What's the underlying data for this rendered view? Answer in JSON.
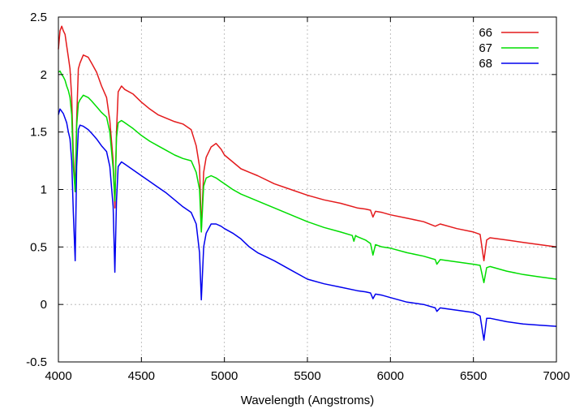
{
  "chart_data": {
    "type": "line",
    "title": "",
    "xlabel": "Wavelength (Angstroms)",
    "ylabel": "",
    "xlim": [
      4000,
      7000
    ],
    "ylim": [
      -0.5,
      2.5
    ],
    "grid": true,
    "legend_position": "top-right",
    "x_ticks": [
      4000,
      4500,
      5000,
      5500,
      6000,
      6500,
      7000
    ],
    "y_ticks": [
      -0.5,
      0,
      0.5,
      1,
      1.5,
      2,
      2.5
    ],
    "x_tick_labels": [
      "4000",
      "4500",
      "5000",
      "5500",
      "6000",
      "6500",
      "7000"
    ],
    "y_tick_labels": [
      "-0.5",
      "0",
      "0.5",
      "1",
      "1.5",
      "2",
      "2.5"
    ],
    "series": [
      {
        "name": "66",
        "color": "#e41a1c",
        "x": [
          4000,
          4010,
          4020,
          4030,
          4040,
          4050,
          4060,
          4070,
          4080,
          4090,
          4101,
          4110,
          4120,
          4130,
          4150,
          4180,
          4200,
          4230,
          4260,
          4290,
          4310,
          4330,
          4340,
          4350,
          4360,
          4380,
          4400,
          4450,
          4500,
          4550,
          4600,
          4650,
          4700,
          4750,
          4800,
          4830,
          4850,
          4861,
          4875,
          4890,
          4920,
          4950,
          4980,
          5000,
          5050,
          5100,
          5150,
          5200,
          5300,
          5400,
          5500,
          5600,
          5700,
          5800,
          5850,
          5880,
          5895,
          5910,
          5950,
          6000,
          6100,
          6200,
          6270,
          6300,
          6400,
          6500,
          6540,
          6563,
          6580,
          6600,
          6700,
          6800,
          6900,
          7000
        ],
        "y": [
          2.22,
          2.38,
          2.42,
          2.38,
          2.35,
          2.25,
          2.15,
          2.05,
          1.8,
          1.3,
          0.98,
          1.6,
          2.05,
          2.1,
          2.17,
          2.15,
          2.1,
          2.02,
          1.9,
          1.8,
          1.6,
          1.25,
          0.84,
          1.5,
          1.85,
          1.9,
          1.87,
          1.83,
          1.76,
          1.7,
          1.65,
          1.62,
          1.59,
          1.57,
          1.52,
          1.38,
          1.2,
          0.65,
          1.15,
          1.28,
          1.37,
          1.4,
          1.35,
          1.3,
          1.24,
          1.18,
          1.15,
          1.12,
          1.05,
          1.0,
          0.95,
          0.91,
          0.88,
          0.84,
          0.83,
          0.82,
          0.76,
          0.81,
          0.8,
          0.78,
          0.75,
          0.72,
          0.68,
          0.7,
          0.66,
          0.63,
          0.61,
          0.38,
          0.56,
          0.58,
          0.56,
          0.54,
          0.52,
          0.5
        ]
      },
      {
        "name": "67",
        "color": "#00dd00",
        "x": [
          4000,
          4010,
          4020,
          4030,
          4040,
          4050,
          4060,
          4070,
          4080,
          4090,
          4101,
          4110,
          4120,
          4130,
          4150,
          4180,
          4200,
          4230,
          4260,
          4290,
          4310,
          4330,
          4340,
          4350,
          4360,
          4380,
          4400,
          4450,
          4500,
          4550,
          4600,
          4650,
          4700,
          4750,
          4800,
          4830,
          4850,
          4861,
          4875,
          4890,
          4920,
          4950,
          4980,
          5000,
          5050,
          5100,
          5150,
          5200,
          5300,
          5400,
          5500,
          5600,
          5700,
          5770,
          5780,
          5790,
          5800,
          5850,
          5880,
          5895,
          5910,
          5950,
          6000,
          6100,
          6200,
          6270,
          6280,
          6300,
          6400,
          6500,
          6540,
          6563,
          6580,
          6600,
          6700,
          6800,
          6900,
          7000
        ],
        "y": [
          2.02,
          2.03,
          2.0,
          1.98,
          1.95,
          1.9,
          1.86,
          1.8,
          1.65,
          1.2,
          0.98,
          1.55,
          1.75,
          1.78,
          1.82,
          1.8,
          1.77,
          1.72,
          1.67,
          1.63,
          1.5,
          1.18,
          0.9,
          1.45,
          1.58,
          1.6,
          1.58,
          1.53,
          1.47,
          1.42,
          1.38,
          1.34,
          1.3,
          1.27,
          1.25,
          1.15,
          1.0,
          0.63,
          1.03,
          1.1,
          1.12,
          1.1,
          1.07,
          1.05,
          1.0,
          0.96,
          0.93,
          0.9,
          0.84,
          0.78,
          0.72,
          0.67,
          0.63,
          0.6,
          0.55,
          0.6,
          0.59,
          0.56,
          0.53,
          0.43,
          0.52,
          0.5,
          0.49,
          0.45,
          0.42,
          0.39,
          0.35,
          0.39,
          0.37,
          0.35,
          0.34,
          0.19,
          0.32,
          0.33,
          0.29,
          0.26,
          0.24,
          0.22
        ]
      },
      {
        "name": "68",
        "color": "#0000ee",
        "x": [
          4000,
          4010,
          4020,
          4030,
          4040,
          4050,
          4060,
          4070,
          4080,
          4090,
          4101,
          4110,
          4120,
          4130,
          4150,
          4180,
          4200,
          4230,
          4260,
          4290,
          4310,
          4330,
          4340,
          4350,
          4360,
          4380,
          4400,
          4450,
          4500,
          4550,
          4600,
          4650,
          4700,
          4750,
          4800,
          4830,
          4850,
          4861,
          4875,
          4890,
          4920,
          4950,
          4980,
          5000,
          5050,
          5100,
          5150,
          5200,
          5300,
          5400,
          5500,
          5600,
          5700,
          5800,
          5850,
          5880,
          5895,
          5910,
          5950,
          6000,
          6100,
          6200,
          6270,
          6280,
          6300,
          6400,
          6500,
          6540,
          6563,
          6580,
          6600,
          6700,
          6800,
          6900,
          7000
        ],
        "y": [
          1.65,
          1.7,
          1.68,
          1.66,
          1.62,
          1.58,
          1.5,
          1.44,
          1.25,
          0.8,
          0.38,
          1.2,
          1.52,
          1.56,
          1.55,
          1.52,
          1.49,
          1.44,
          1.38,
          1.33,
          1.2,
          0.85,
          0.28,
          0.9,
          1.2,
          1.24,
          1.22,
          1.17,
          1.12,
          1.07,
          1.02,
          0.97,
          0.91,
          0.85,
          0.8,
          0.7,
          0.45,
          0.04,
          0.5,
          0.62,
          0.7,
          0.7,
          0.68,
          0.66,
          0.62,
          0.57,
          0.5,
          0.45,
          0.38,
          0.3,
          0.22,
          0.18,
          0.15,
          0.12,
          0.11,
          0.1,
          0.05,
          0.09,
          0.08,
          0.06,
          0.02,
          0.0,
          -0.03,
          -0.06,
          -0.03,
          -0.05,
          -0.07,
          -0.1,
          -0.31,
          -0.12,
          -0.12,
          -0.15,
          -0.17,
          -0.18,
          -0.19
        ]
      }
    ]
  }
}
